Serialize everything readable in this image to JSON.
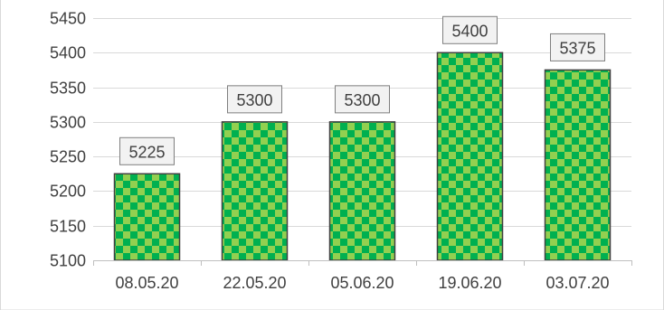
{
  "chart_data": {
    "type": "bar",
    "categories": [
      "08.05.20",
      "22.05.20",
      "05.06.20",
      "19.06.20",
      "03.07.20"
    ],
    "values": [
      5225,
      5300,
      5300,
      5400,
      5375
    ],
    "data_labels": [
      "5225",
      "5300",
      "5300",
      "5400",
      "5375"
    ],
    "y_ticks": [
      5100,
      5150,
      5200,
      5250,
      5300,
      5350,
      5400,
      5450
    ],
    "ylim": [
      5100,
      5450
    ],
    "grid": true,
    "legend": "none",
    "colors": {
      "bar_fill_light": "#92d050",
      "bar_fill_dark": "#00b050",
      "bar_stroke": "#404040",
      "gridline": "#d9d9d9",
      "axis": "#bfbfbf",
      "label_box_fill": "#f2f2f2",
      "label_box_stroke": "#7f7f7f",
      "text": "#404040",
      "frame": "#d9d9d9"
    }
  }
}
